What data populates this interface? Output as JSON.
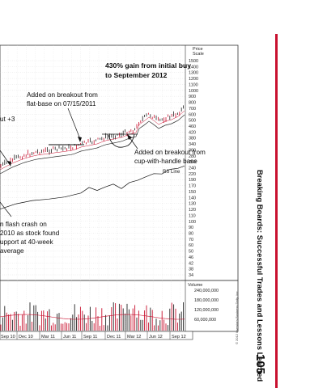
{
  "chart": {
    "price_scale_title_1": "Price",
    "price_scale_title_2": "Scale",
    "price_ticks": [
      "1500",
      "1400",
      "1300",
      "1200",
      "1100",
      "1000",
      "900",
      "800",
      "700",
      "600",
      "500",
      "460",
      "420",
      "380",
      "340",
      "300",
      "280",
      "260",
      "240",
      "220",
      "190",
      "170",
      "150",
      "140",
      "130",
      "120",
      "110",
      "100",
      "90",
      "80",
      "70",
      "60",
      "50",
      "46",
      "42",
      "38",
      "34"
    ],
    "volume_title": "Volume",
    "volume_ticks": [
      "240,000,000",
      "180,000,000",
      "120,000,000",
      "60,000,000"
    ],
    "x_labels": [
      "Sep 10",
      "Dec 10",
      "Mar 11",
      "Jun 11",
      "Sep 11",
      "Dec 11",
      "Mar 12",
      "Jun 12",
      "Sep 12"
    ],
    "rs_line_label": "RS Line",
    "colors": {
      "up_bar": "#222222",
      "down_bar": "#c8102e",
      "ma_line": "#333333",
      "rs_line": "#111111"
    }
  },
  "annotations": {
    "gain_line_1": "430% gain from initial buy",
    "gain_line_2": "to September 2012",
    "flat_base_1": "Added on breakout from",
    "flat_base_2": "flat-base on 07/15/2011",
    "partial_left": "ut +3",
    "cup_1": "Added on breakout from",
    "cup_2": "cup-with-handle base",
    "crash_1": "n flash crash on",
    "crash_2": "2010 as stock found",
    "crash_3": "upport at 40-week",
    "crash_4": " average"
  },
  "sidebar": {
    "title": "Breaking Boards: Successful Trades and Lessons Learned",
    "page_number": "105",
    "copyright": "© 2012 Investor's Business Daily, Inc."
  }
}
